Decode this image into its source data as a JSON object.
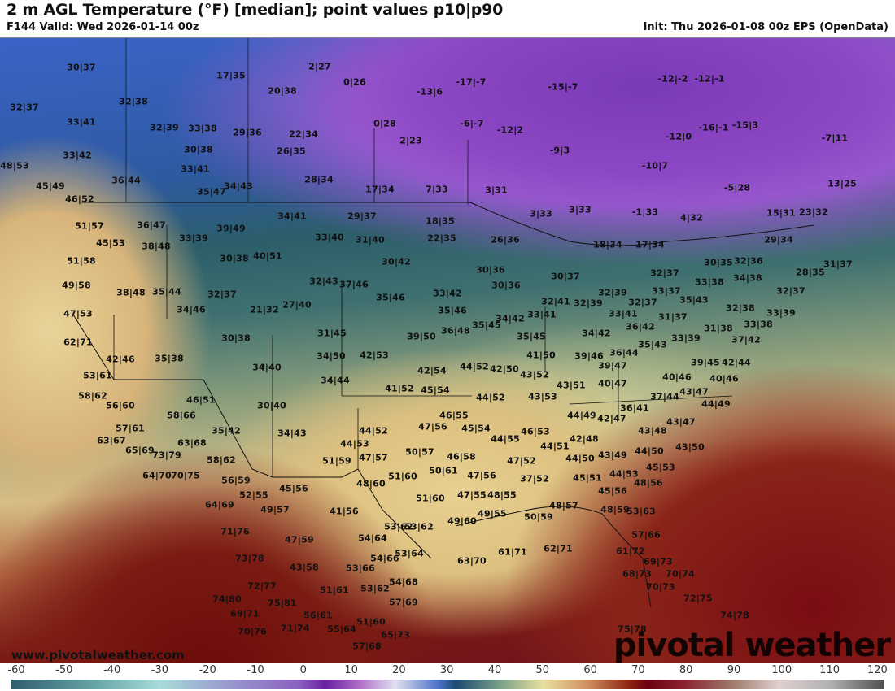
{
  "header": {
    "title": "2 m AGL Temperature (°F) [median]; point values p10|p90",
    "valid": "F144 Valid: Wed 2026-01-14 00z",
    "init": "Init: Thu 2026-01-08 00z EPS (OpenData)"
  },
  "map": {
    "website": "www.pivotalweather.com",
    "logo": "pivotal weather",
    "labels": [
      "30|37",
      "17|35",
      "2|27",
      "0|26",
      "20|38",
      "-13|6",
      "32|38",
      "32|37",
      "33|41",
      "0|28",
      "32|39",
      "33|38",
      "29|36",
      "22|34",
      "2|23",
      "33|42",
      "30|38",
      "26|35",
      "48|53",
      "33|41",
      "36|44",
      "28|34",
      "45|49",
      "34|43",
      "35|47",
      "17|34",
      "7|33",
      "46|52",
      "34|41",
      "29|37",
      "18|35",
      "51|57",
      "36|47",
      "39|49",
      "45|53",
      "38|48",
      "33|39",
      "33|40",
      "31|40",
      "22|35",
      "51|58",
      "30|38",
      "40|51",
      "30|42",
      "49|58",
      "38|48",
      "35|44",
      "32|37",
      "32|43",
      "37|46",
      "35|46",
      "33|42",
      "47|53",
      "34|46",
      "21|32",
      "27|40",
      "31|45",
      "39|50",
      "30|38",
      "62|71",
      "-17|-7",
      "-15|-7",
      "-12|-2",
      "-12|-1",
      "-6|-7",
      "-12|2",
      "-16|-1",
      "-15|3",
      "-12|0",
      "-7|11",
      "-9|3",
      "-10|7",
      "-5|28",
      "13|25",
      "3|31",
      "3|33",
      "3|33",
      "-1|33",
      "4|32",
      "15|31",
      "23|32",
      "26|36",
      "18|34",
      "17|34",
      "29|34",
      "30|35",
      "32|36",
      "31|37",
      "28|35",
      "32|37",
      "34|38",
      "33|38",
      "32|37",
      "30|36",
      "30|36",
      "30|37",
      "32|39",
      "33|37",
      "35|43",
      "32|41",
      "32|39",
      "32|37",
      "33|41",
      "31|37",
      "32|38",
      "33|39",
      "33|38",
      "31|38",
      "36|42",
      "34|42",
      "33|39",
      "37|42",
      "35|45",
      "35|46",
      "36|48",
      "35|45",
      "34|42",
      "33|41",
      "41|50",
      "39|46",
      "36|44",
      "35|43",
      "42|53",
      "34|50",
      "34|40",
      "34|44",
      "42|54",
      "44|52",
      "42|50",
      "43|52",
      "39|47",
      "41|52",
      "45|54",
      "44|52",
      "43|53",
      "43|51",
      "40|47",
      "39|45",
      "42|44",
      "40|46",
      "40|46",
      "43|47",
      "37|44",
      "44|49",
      "36|41",
      "42|47",
      "43|47",
      "43|48",
      "44|49",
      "42|46",
      "35|38",
      "53|61",
      "58|62",
      "56|60",
      "46|51",
      "30|40",
      "58|66",
      "57|61",
      "35|42",
      "34|43",
      "63|67",
      "63|68",
      "65|69",
      "73|79",
      "58|62",
      "64|70",
      "70|75",
      "56|59",
      "52|55",
      "45|56",
      "64|69",
      "49|57",
      "71|76",
      "47|59",
      "53|62",
      "54|64",
      "73|78",
      "43|58",
      "54|66",
      "53|64",
      "53|66",
      "72|77",
      "51|61",
      "53|62",
      "54|68",
      "74|80",
      "75|81",
      "57|69",
      "69|71",
      "56|61",
      "51|60",
      "70|76",
      "71|74",
      "55|64",
      "65|73",
      "57|68",
      "46|55",
      "47|56",
      "45|54",
      "44|52",
      "44|53",
      "44|55",
      "46|53",
      "50|57",
      "46|58",
      "51|59",
      "47|57",
      "50|61",
      "47|56",
      "51|60",
      "48|60",
      "47|52",
      "44|51",
      "42|48",
      "44|50",
      "43|49",
      "44|53",
      "45|51",
      "37|52",
      "47|55",
      "48|55",
      "51|60",
      "45|56",
      "48|57",
      "48|59",
      "50|59",
      "49|55",
      "49|60",
      "53|62",
      "41|56",
      "43|50",
      "44|50",
      "45|53",
      "48|56",
      "53|63",
      "57|66",
      "61|71",
      "62|71",
      "61|72",
      "63|70",
      "69|73",
      "68|73",
      "70|74",
      "70|73",
      "72|75",
      "74|78",
      "75|78"
    ]
  },
  "colorbar": {
    "ticks": [
      "-60",
      "-50",
      "-40",
      "-30",
      "-20",
      "-10",
      "0",
      "10",
      "20",
      "30",
      "40",
      "50",
      "60",
      "70",
      "80",
      "90",
      "100",
      "110",
      "120"
    ]
  }
}
